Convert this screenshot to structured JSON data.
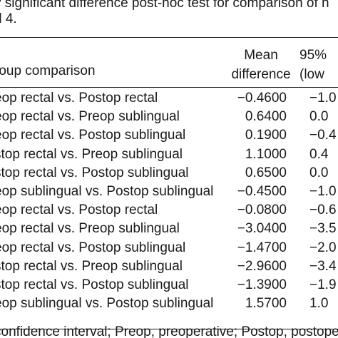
{
  "caption": {
    "line1": "y significant difference post-hoc test for comparison of h",
    "line2": "d 4."
  },
  "table": {
    "headers": {
      "group": "roup comparison",
      "mean_line1": "Mean",
      "mean_line2": "difference",
      "ci_line1": "95%",
      "ci_line2": "(low"
    },
    "rows": [
      {
        "comparison": "eop rectal vs. Postop rectal",
        "mean": "−0.4600",
        "ci": "−1.0"
      },
      {
        "comparison": "eop rectal vs. Preop sublingual",
        "mean": "0.6400",
        "ci": "0.0"
      },
      {
        "comparison": "eop rectal vs. Postop sublingual",
        "mean": "0.1900",
        "ci": "−0.4"
      },
      {
        "comparison": "stop rectal vs. Preop sublingual",
        "mean": "1.1000",
        "ci": "0.4"
      },
      {
        "comparison": "stop rectal vs. Postop sublingual",
        "mean": "0.6500",
        "ci": "0.0"
      },
      {
        "comparison": "eop sublingual vs. Postop sublingual",
        "mean": "−0.4500",
        "ci": "−1.0"
      },
      {
        "comparison": "eop rectal vs. Postop rectal",
        "mean": "−0.0800",
        "ci": "−0.6"
      },
      {
        "comparison": "eop rectal vs. Preop sublingual",
        "mean": "−3.0400",
        "ci": "−3.5"
      },
      {
        "comparison": "eop rectal vs. Postop sublingual",
        "mean": "−1.4700",
        "ci": "−2.0"
      },
      {
        "comparison": "stop rectal vs. Preop sublingual",
        "mean": "−2.9600",
        "ci": "−3.4"
      },
      {
        "comparison": "stop rectal vs. Postop sublingual",
        "mean": "−1.3900",
        "ci": "−1.9"
      },
      {
        "comparison": "eop sublingual vs. Postop sublingual",
        "mean": "1.5700",
        "ci": "1.0"
      }
    ]
  },
  "footnote": "confidence interval; Preop, preoperative; Postop, postoperative"
}
